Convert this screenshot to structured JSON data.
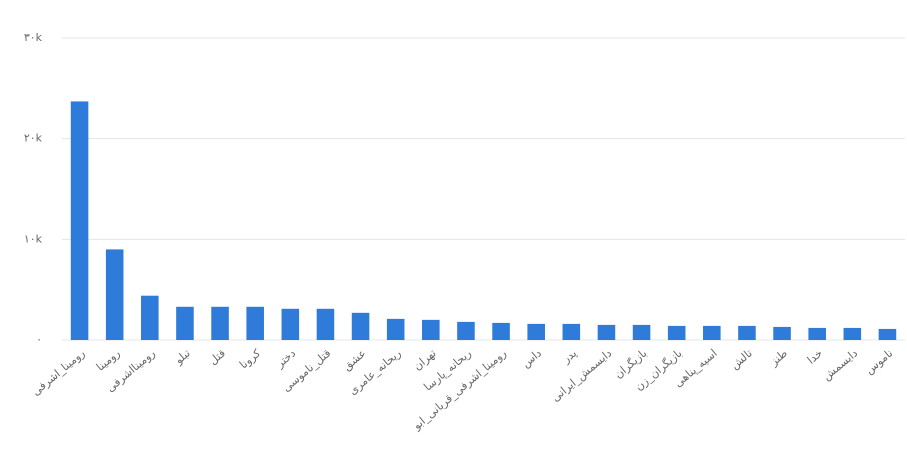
{
  "chart_data": {
    "type": "bar",
    "categories": [
      "رومینا_اشرفی",
      "رومینا",
      "رومينااشرفی",
      "تبلو",
      "قتل",
      "کرونا",
      "دختر",
      "قتل_ناموسی",
      "عشق",
      "ریحانه_عامری",
      "تهران",
      "ریحانه_پارسا",
      "رومینا_اشرفی_قربانی_ابو",
      "داس",
      "پدر",
      "دایسمش_ایرانی",
      "بازیگران",
      "بازیگران_زن",
      "اسیه_پناهی",
      "تالش",
      "طنز",
      "خدا",
      "دایسمش",
      "ناموس"
    ],
    "values": [
      23700,
      9000,
      4400,
      3300,
      3300,
      3300,
      3100,
      3100,
      2700,
      2100,
      2000,
      1800,
      1700,
      1600,
      1600,
      1500,
      1500,
      1400,
      1400,
      1400,
      1300,
      1200,
      1200,
      1100
    ],
    "color": "#2f7bd9",
    "ylim": [
      0,
      30000
    ],
    "yticks": [
      {
        "value": 0,
        "label": "۰"
      },
      {
        "value": 10000,
        "label": "۱۰k"
      },
      {
        "value": 20000,
        "label": "۲۰k"
      },
      {
        "value": 30000,
        "label": "۳۰k"
      }
    ],
    "grid": true
  }
}
